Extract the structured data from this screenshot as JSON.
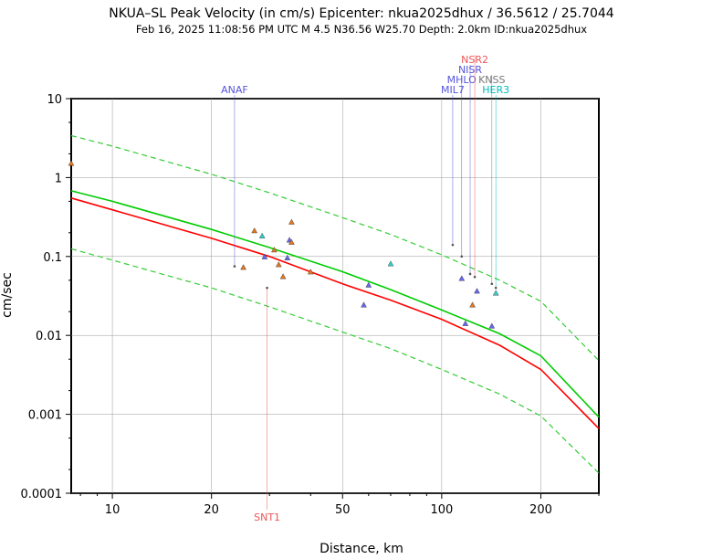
{
  "chart_data": {
    "type": "scatter",
    "title": "NKUA–SL Peak Velocity (in cm/s) Epicenter: nkua2025dhux / 36.5612 / 25.7044",
    "subtitle": "Feb 16, 2025 11:08:56 PM UTC   M 4.5   N36.56 W25.70   Depth: 2.0km   ID:nkua2025dhux",
    "xlabel": "Distance, km",
    "ylabel": "cm/sec",
    "x_scale": "log",
    "y_scale": "log",
    "xlim": [
      7.5,
      300
    ],
    "ylim": [
      0.0001,
      10
    ],
    "grid": true,
    "x_ticks": [
      {
        "value": 10,
        "label": "10"
      },
      {
        "value": 20,
        "label": "20"
      },
      {
        "value": 50,
        "label": "50"
      },
      {
        "value": 100,
        "label": "100"
      },
      {
        "value": 200,
        "label": "200"
      }
    ],
    "y_ticks": [
      {
        "value": 10,
        "label": "10"
      },
      {
        "value": 1,
        "label": "1"
      },
      {
        "value": 0.1,
        "label": "0.1"
      },
      {
        "value": 0.01,
        "label": "0.01"
      },
      {
        "value": 0.001,
        "label": "0.001"
      },
      {
        "value": 0.0001,
        "label": "0.0001"
      }
    ],
    "colors": {
      "green_curve": "#00cc00",
      "red_curve": "#ff0000",
      "orange_marker": "#e07820",
      "cyan_marker": "#33cccc",
      "blue_marker": "#6666ee",
      "station_blue": "#5555dd",
      "station_red": "#ee5555",
      "station_gray": "#777777",
      "station_cyan": "#00bbbb",
      "grid": "#999999"
    },
    "curves": [
      {
        "color": "#00cc00",
        "dash": false,
        "points": [
          [
            7.5,
            0.68
          ],
          [
            10,
            0.5
          ],
          [
            20,
            0.22
          ],
          [
            30,
            0.13
          ],
          [
            50,
            0.064
          ],
          [
            70,
            0.038
          ],
          [
            100,
            0.021
          ],
          [
            150,
            0.0105
          ],
          [
            200,
            0.0055
          ],
          [
            300,
            0.00092
          ]
        ]
      },
      {
        "color": "#ff0000",
        "dash": false,
        "points": [
          [
            7.5,
            0.55
          ],
          [
            10,
            0.39
          ],
          [
            20,
            0.17
          ],
          [
            30,
            0.1
          ],
          [
            50,
            0.045
          ],
          [
            70,
            0.028
          ],
          [
            100,
            0.016
          ],
          [
            150,
            0.0075
          ],
          [
            200,
            0.0037
          ],
          [
            300,
            0.00066
          ]
        ]
      },
      {
        "color": "#33cc33",
        "dash": true,
        "points": [
          [
            7.5,
            3.4
          ],
          [
            10,
            2.5
          ],
          [
            20,
            1.1
          ],
          [
            30,
            0.64
          ],
          [
            50,
            0.31
          ],
          [
            70,
            0.19
          ],
          [
            100,
            0.105
          ],
          [
            150,
            0.05
          ],
          [
            200,
            0.027
          ],
          [
            300,
            0.0048
          ]
        ]
      },
      {
        "color": "#33cc33",
        "dash": true,
        "points": [
          [
            7.5,
            0.125
          ],
          [
            10,
            0.09
          ],
          [
            20,
            0.04
          ],
          [
            30,
            0.023
          ],
          [
            50,
            0.011
          ],
          [
            70,
            0.0068
          ],
          [
            100,
            0.0037
          ],
          [
            150,
            0.0018
          ],
          [
            200,
            0.00095
          ],
          [
            300,
            0.00018
          ]
        ]
      }
    ],
    "points": [
      {
        "x": 7.5,
        "y": 1.5,
        "color": "#e07820"
      },
      {
        "x": 25,
        "y": 0.072,
        "color": "#e07820"
      },
      {
        "x": 27,
        "y": 0.21,
        "color": "#e07820"
      },
      {
        "x": 28.5,
        "y": 0.18,
        "color": "#33cccc"
      },
      {
        "x": 29,
        "y": 0.098,
        "color": "#6666ee"
      },
      {
        "x": 31,
        "y": 0.12,
        "color": "#e07820"
      },
      {
        "x": 32,
        "y": 0.078,
        "color": "#e07820"
      },
      {
        "x": 33,
        "y": 0.055,
        "color": "#e07820"
      },
      {
        "x": 34,
        "y": 0.095,
        "color": "#6666ee"
      },
      {
        "x": 34.5,
        "y": 0.16,
        "color": "#6666ee"
      },
      {
        "x": 35,
        "y": 0.15,
        "color": "#e07820"
      },
      {
        "x": 35,
        "y": 0.27,
        "color": "#e07820"
      },
      {
        "x": 40,
        "y": 0.063,
        "color": "#e07820"
      },
      {
        "x": 58,
        "y": 0.024,
        "color": "#6666ee"
      },
      {
        "x": 60,
        "y": 0.043,
        "color": "#6666ee"
      },
      {
        "x": 70,
        "y": 0.08,
        "color": "#33cccc"
      },
      {
        "x": 115,
        "y": 0.052,
        "color": "#6666ee"
      },
      {
        "x": 118,
        "y": 0.014,
        "color": "#6666ee"
      },
      {
        "x": 124,
        "y": 0.024,
        "color": "#e07820"
      },
      {
        "x": 128,
        "y": 0.036,
        "color": "#6666ee"
      },
      {
        "x": 142,
        "y": 0.013,
        "color": "#6666ee"
      },
      {
        "x": 146,
        "y": 0.034,
        "color": "#33cccc"
      }
    ],
    "stations": [
      {
        "name": "ANAF",
        "x": 23.5,
        "y": 0.075,
        "color": "#5555dd",
        "label_pos": "top",
        "label_row": 0
      },
      {
        "name": "SNT1",
        "x": 29.5,
        "y": 0.04,
        "color": "#ee5555",
        "label_pos": "bottom",
        "label_row": 0
      },
      {
        "name": "MIL7",
        "x": 108,
        "y": 0.14,
        "color": "#5555dd",
        "label_pos": "top",
        "label_row": 0
      },
      {
        "name": "MHLO",
        "x": 115,
        "y": 0.1,
        "color": "#5555dd",
        "label_pos": "top",
        "label_row": 1
      },
      {
        "name": "NISR",
        "x": 122,
        "y": 0.06,
        "color": "#5555dd",
        "label_pos": "top",
        "label_row": 2
      },
      {
        "name": "NSR2",
        "x": 126,
        "y": 0.055,
        "color": "#ee5555",
        "label_pos": "top",
        "label_row": 3
      },
      {
        "name": "KNSS",
        "x": 142,
        "y": 0.045,
        "color": "#777777",
        "label_pos": "top",
        "label_row": 1
      },
      {
        "name": "HER3",
        "x": 146,
        "y": 0.04,
        "color": "#00bbbb",
        "label_pos": "top",
        "label_row": 0
      }
    ]
  }
}
